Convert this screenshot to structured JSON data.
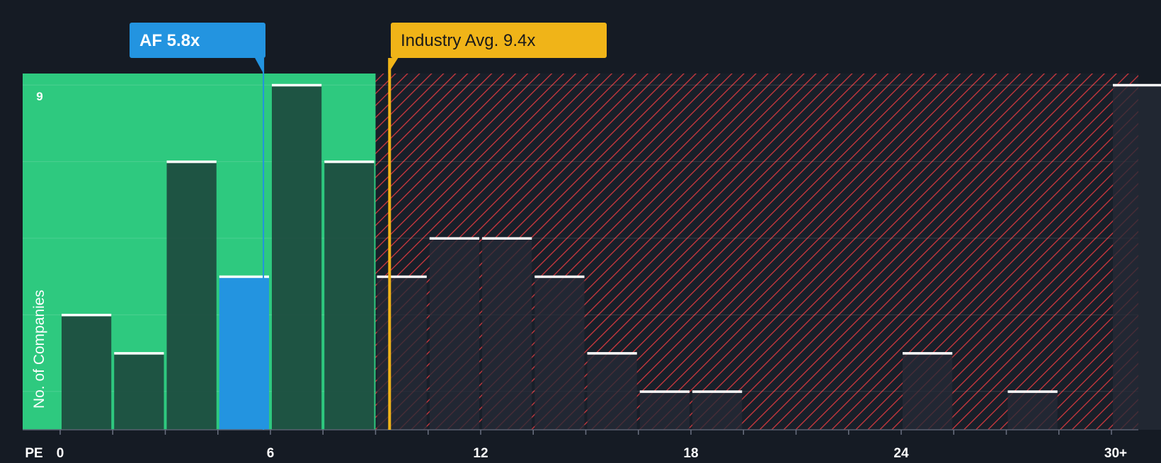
{
  "chart_data": {
    "type": "bar",
    "title": "",
    "xlabel": "PE",
    "ylabel": "No. of Companies",
    "x_bin_start": [
      0,
      1.5,
      3,
      4.5,
      6,
      7.5,
      9,
      10.5,
      12,
      13.5,
      15,
      16.5,
      18,
      19.5,
      21,
      22.5,
      24,
      25.5,
      27,
      28.5,
      30
    ],
    "values": [
      3,
      2,
      7,
      4,
      9,
      7,
      4,
      5,
      5,
      4,
      2,
      1,
      1,
      0,
      0,
      0,
      2,
      0,
      1,
      0,
      9
    ],
    "bin_width": 1.5,
    "xlim": [
      0,
      31.5
    ],
    "ylim": [
      0,
      9.3
    ],
    "x_ticks": [
      0,
      6,
      12,
      18,
      24,
      30
    ],
    "x_tick_labels": [
      "0",
      "6",
      "12",
      "18",
      "24",
      "30+"
    ],
    "y_tick_label": "9",
    "highlight_bin_index": 3,
    "company": {
      "label": "AF 5.8x",
      "value": 5.8,
      "color": "#2394e0"
    },
    "industry": {
      "label": "Industry Avg. 9.4x",
      "value": 9.4,
      "color": "#f0b418"
    },
    "fair_zone_end": 9,
    "colors": {
      "background": "#151b24",
      "fair_zone": "#2ec97f",
      "bar_fair": "#1d4a3e",
      "bar_over": "#252a36",
      "hatch": "#d0383e",
      "cap": "#ffffff"
    }
  }
}
